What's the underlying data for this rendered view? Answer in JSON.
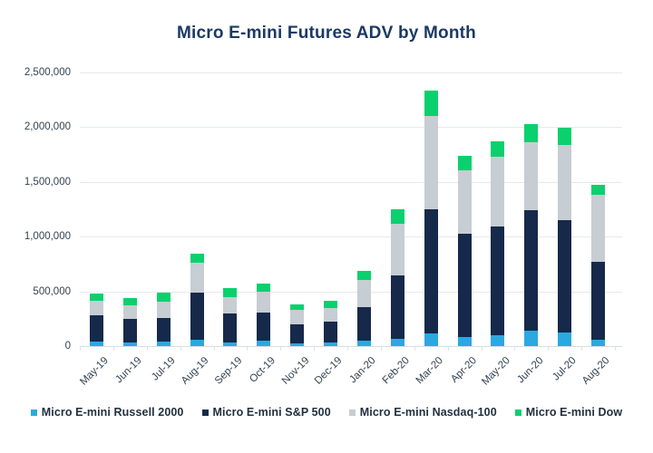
{
  "page": {
    "title": "Micro E-mini Futures ADV by Month"
  },
  "colors": {
    "background": "#ffffff",
    "title_text": "#1b3a63",
    "axis_text": "#33424f",
    "gridline": "#e6e9ec",
    "baseline": "#d9dee2",
    "russell_blue": "#2aa9e0",
    "sp500_navy": "#16294a",
    "nasdaq_gray": "#c6cdd3",
    "dow_green": "#0bd06e"
  },
  "chart_data": {
    "type": "bar",
    "stacked": true,
    "title": "Micro E-mini Futures ADV by Month",
    "xlabel": "",
    "ylabel": "",
    "ylim": [
      0,
      2500000
    ],
    "grid": "horizontal",
    "legend_position": "bottom",
    "categories": [
      "May-19",
      "Jun-19",
      "Jul-19",
      "Aug-19",
      "Sep-19",
      "Oct-19",
      "Nov-19",
      "Dec-19",
      "Jan-20",
      "Feb-20",
      "Mar-20",
      "Apr-20",
      "May-20",
      "Jun-20",
      "Jul-20",
      "Aug-20"
    ],
    "y_ticks": [
      {
        "value": 0,
        "label": "0"
      },
      {
        "value": 500000,
        "label": "500,000"
      },
      {
        "value": 1000000,
        "label": "1,000,000"
      },
      {
        "value": 1500000,
        "label": "1,500,000"
      },
      {
        "value": 2000000,
        "label": "2,000,000"
      },
      {
        "value": 2500000,
        "label": "2,500,000"
      }
    ],
    "series": [
      {
        "name": "Micro E-mini Russell 2000",
        "color": "#2aa9e0",
        "values": [
          45000,
          35000,
          45000,
          55000,
          35000,
          50000,
          25000,
          30000,
          50000,
          70000,
          115000,
          80000,
          100000,
          140000,
          125000,
          60000
        ]
      },
      {
        "name": "Micro E-mini S&P 500",
        "color": "#16294a",
        "values": [
          235000,
          215000,
          210000,
          435000,
          260000,
          255000,
          170000,
          195000,
          305000,
          575000,
          1135000,
          945000,
          995000,
          1105000,
          1025000,
          710000
        ]
      },
      {
        "name": "Micro E-mini Nasdaq-100",
        "color": "#c6cdd3",
        "values": [
          130000,
          120000,
          150000,
          275000,
          150000,
          190000,
          140000,
          120000,
          250000,
          470000,
          855000,
          585000,
          635000,
          620000,
          690000,
          610000
        ]
      },
      {
        "name": "Micro E-mini Dow",
        "color": "#0bd06e",
        "values": [
          70000,
          70000,
          80000,
          80000,
          85000,
          80000,
          50000,
          70000,
          80000,
          135000,
          230000,
          125000,
          140000,
          165000,
          155000,
          90000
        ]
      }
    ],
    "totals": [
      480000,
      440000,
      485000,
      845000,
      530000,
      575000,
      385000,
      415000,
      685000,
      1250000,
      2335000,
      1735000,
      1870000,
      2030000,
      1995000,
      1470000
    ]
  }
}
